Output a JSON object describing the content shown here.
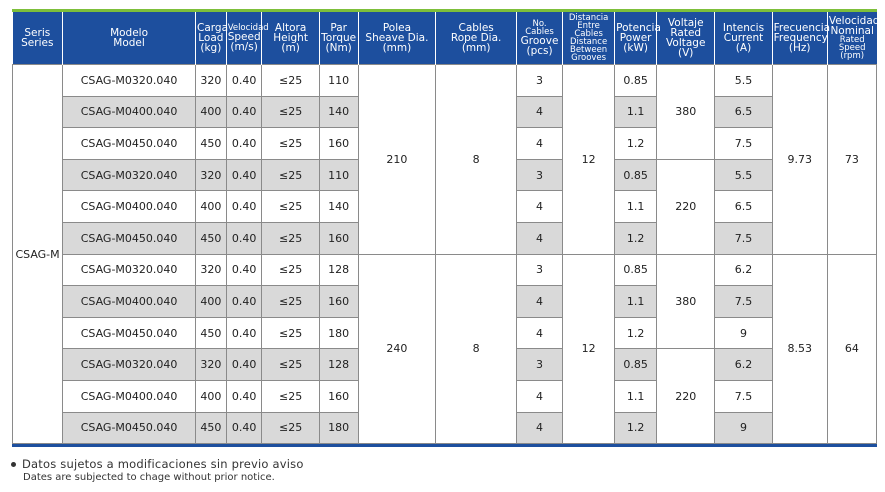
{
  "header": [
    {
      "es": "Seris",
      "en": "Series"
    },
    {
      "es": "Modelo",
      "en": "Model"
    },
    {
      "es": "Carga",
      "en": "Load",
      "unit": "(kg)"
    },
    {
      "es": "Velocidad",
      "en": "Speed",
      "unit": "(m/s)"
    },
    {
      "es": "Altora",
      "en": "Height",
      "unit": "(m)"
    },
    {
      "es": "Par",
      "en": "Torque",
      "unit": "(Nm)"
    },
    {
      "es": "Polea",
      "en": "Sheave Dia.",
      "unit": "(mm)"
    },
    {
      "es": "Cables",
      "en": "Rope Dia.",
      "unit": "(mm)"
    },
    {
      "es": "No. Cables",
      "en": "Groove",
      "unit": "(pcs)"
    },
    {
      "es": "Distancia",
      "es2": "Entre Cables",
      "en": "Distance",
      "en2": "Between",
      "en3": "Grooves"
    },
    {
      "es": "Potencia",
      "en": "Power",
      "unit": "(kW)"
    },
    {
      "es": "Voltaje",
      "en": "Rated",
      "en2": "Voltage",
      "unit": "(V)"
    },
    {
      "es": "Intencis",
      "en": "Current",
      "unit": "(A)"
    },
    {
      "es": "Frecuencia",
      "en": "Frequency",
      "unit": "(Hz)"
    },
    {
      "es": "Velocidad",
      "es2": "Nominal",
      "en": "Rated Speed",
      "unit": "(rpm)"
    }
  ],
  "series": "CSAG-M",
  "rows": [
    {
      "model": "CSAG-M0320.040",
      "load": "320",
      "speed": "0.40",
      "height": "≤25",
      "torque": "110",
      "groove": "3",
      "power": "0.85",
      "current": "5.5"
    },
    {
      "model": "CSAG-M0400.040",
      "load": "400",
      "speed": "0.40",
      "height": "≤25",
      "torque": "140",
      "groove": "4",
      "power": "1.1",
      "current": "6.5"
    },
    {
      "model": "CSAG-M0450.040",
      "load": "450",
      "speed": "0.40",
      "height": "≤25",
      "torque": "160",
      "groove": "4",
      "power": "1.2",
      "current": "7.5"
    },
    {
      "model": "CSAG-M0320.040",
      "load": "320",
      "speed": "0.40",
      "height": "≤25",
      "torque": "110",
      "groove": "3",
      "power": "0.85",
      "current": "5.5"
    },
    {
      "model": "CSAG-M0400.040",
      "load": "400",
      "speed": "0.40",
      "height": "≤25",
      "torque": "140",
      "groove": "4",
      "power": "1.1",
      "current": "6.5"
    },
    {
      "model": "CSAG-M0450.040",
      "load": "450",
      "speed": "0.40",
      "height": "≤25",
      "torque": "160",
      "groove": "4",
      "power": "1.2",
      "current": "7.5"
    },
    {
      "model": "CSAG-M0320.040",
      "load": "320",
      "speed": "0.40",
      "height": "≤25",
      "torque": "128",
      "groove": "3",
      "power": "0.85",
      "current": "6.2"
    },
    {
      "model": "CSAG-M0400.040",
      "load": "400",
      "speed": "0.40",
      "height": "≤25",
      "torque": "160",
      "groove": "4",
      "power": "1.1",
      "current": "7.5"
    },
    {
      "model": "CSAG-M0450.040",
      "load": "450",
      "speed": "0.40",
      "height": "≤25",
      "torque": "180",
      "groove": "4",
      "power": "1.2",
      "current": "9"
    },
    {
      "model": "CSAG-M0320.040",
      "load": "320",
      "speed": "0.40",
      "height": "≤25",
      "torque": "128",
      "groove": "3",
      "power": "0.85",
      "current": "6.2"
    },
    {
      "model": "CSAG-M0400.040",
      "load": "400",
      "speed": "0.40",
      "height": "≤25",
      "torque": "160",
      "groove": "4",
      "power": "1.1",
      "current": "7.5"
    },
    {
      "model": "CSAG-M0450.040",
      "load": "450",
      "speed": "0.40",
      "height": "≤25",
      "torque": "180",
      "groove": "4",
      "power": "1.2",
      "current": "9"
    }
  ],
  "groups": [
    {
      "sheave": "210",
      "rope": "8",
      "distance": "12",
      "frequency": "9.73",
      "rpm": "73",
      "voltage_a": "380",
      "voltage_b": "220"
    },
    {
      "sheave": "240",
      "rope": "8",
      "distance": "12",
      "frequency": "8.53",
      "rpm": "64",
      "voltage_a": "380",
      "voltage_b": "220"
    }
  ],
  "notes": {
    "es": "Datos sujetos a modificaciones sin previo aviso",
    "en": "Dates are subjected to chage without prior notice."
  },
  "colors": {
    "header": "#1d4f9e",
    "accent_green": "#7dbf3a",
    "shade": "#d9d9d9"
  }
}
